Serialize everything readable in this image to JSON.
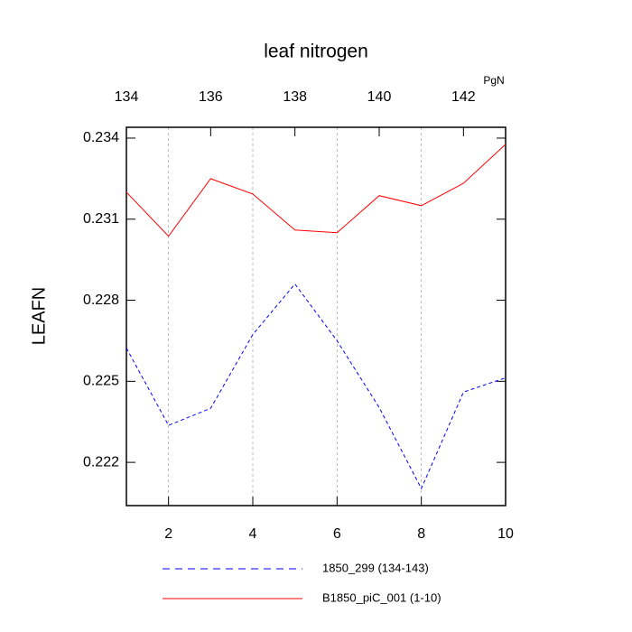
{
  "chart_data": {
    "type": "line",
    "title": "leaf nitrogen",
    "ylabel": "LEAFN",
    "x2label": "PgN",
    "xlim": [
      1,
      10
    ],
    "xticks": [
      2,
      4,
      6,
      8,
      10
    ],
    "xtick_color": "#ff0000",
    "x2lim": [
      134,
      143
    ],
    "x2ticks": [
      134,
      136,
      138,
      140,
      142
    ],
    "x2tick_color": "#0000ff",
    "ylim": [
      0.2204,
      0.2344
    ],
    "yticks": [
      0.222,
      0.225,
      0.228,
      0.231,
      0.234
    ],
    "grid": true,
    "series": [
      {
        "name": "1850_299 (134-143)",
        "color": "#0000ff",
        "dashed": true,
        "axis": "x2",
        "x": [
          134,
          135,
          136,
          137,
          138,
          139,
          140,
          141,
          142,
          143
        ],
        "values": [
          0.22623,
          0.22337,
          0.224,
          0.22673,
          0.2286,
          0.2265,
          0.22403,
          0.22103,
          0.2246,
          0.22513
        ]
      },
      {
        "name": "B1850_piC_001 (1-10)",
        "color": "#ff0000",
        "dashed": false,
        "x": [
          1,
          2,
          3,
          4,
          5,
          6,
          7,
          8,
          9,
          10
        ],
        "values": [
          0.232,
          0.23037,
          0.2325,
          0.23193,
          0.2306,
          0.2305,
          0.23187,
          0.2315,
          0.23233,
          0.23377
        ]
      }
    ]
  }
}
